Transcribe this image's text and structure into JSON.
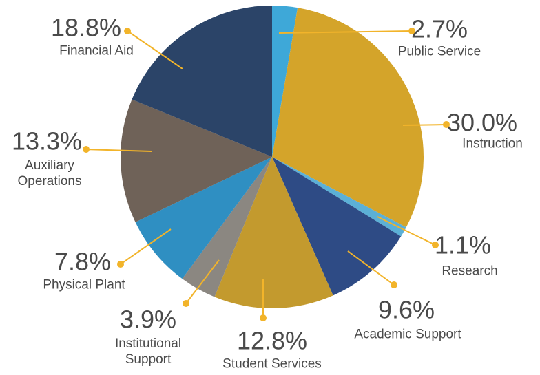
{
  "chart_data": {
    "type": "pie",
    "categories": [
      "Public Service",
      "Instruction",
      "Research",
      "Academic Support",
      "Student Services",
      "Institutional Support",
      "Physical Plant",
      "Auxiliary Operations",
      "Financial Aid"
    ],
    "values": [
      2.7,
      30.0,
      1.1,
      9.6,
      12.8,
      3.9,
      7.8,
      13.3,
      18.8
    ],
    "value_labels": [
      "2.7%",
      "30.0%",
      "1.1%",
      "9.6%",
      "12.8%",
      "3.9%",
      "7.8%",
      "13.3%",
      "18.8%"
    ],
    "colors": [
      "#3ea8d8",
      "#d4a42a",
      "#5cb0d6",
      "#2e4b85",
      "#c39a2e",
      "#8b8781",
      "#2f8fc2",
      "#6f6258",
      "#2b4468"
    ]
  }
}
